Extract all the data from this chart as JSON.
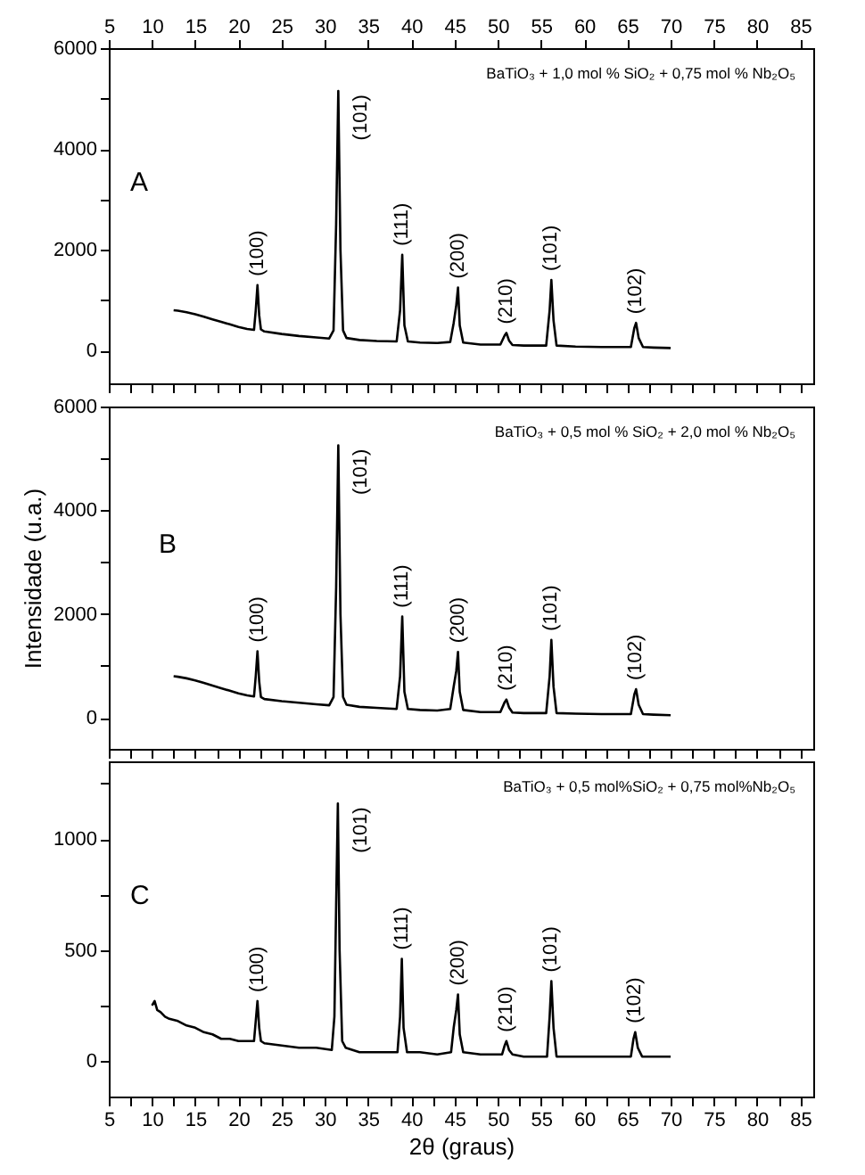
{
  "chart_data": [
    {
      "type": "line",
      "xlim": [
        5,
        86.5
      ],
      "x2lim": [
        5,
        86.5
      ],
      "ylim": [
        -650,
        6000
      ],
      "grid": false,
      "tick_labels": "y",
      "xticks": [
        5,
        {
          "value": 7.5,
          "label": null
        },
        10,
        {
          "value": 12.5,
          "label": null
        },
        15,
        {
          "value": 17.5,
          "label": null
        },
        20,
        {
          "value": 22.5,
          "label": null
        },
        25,
        {
          "value": 27.5,
          "label": null
        },
        30,
        {
          "value": 32.5,
          "label": null
        },
        35,
        {
          "value": 37.5,
          "label": null
        },
        40,
        {
          "value": 42.5,
          "label": null
        },
        45,
        {
          "value": 47.5,
          "label": null
        },
        50,
        {
          "value": 52.5,
          "label": null
        },
        55,
        {
          "value": 57.5,
          "label": null
        },
        60,
        {
          "value": 62.5,
          "label": null
        },
        65,
        {
          "value": 67.5,
          "label": null
        },
        70,
        {
          "value": 72.5,
          "label": null
        },
        75,
        {
          "value": 77.5,
          "label": null
        },
        80,
        {
          "value": 82.5,
          "label": null
        },
        85
      ],
      "x2ticks": [
        5,
        10,
        15,
        20,
        25,
        30,
        35,
        40,
        45,
        50,
        55,
        60,
        65,
        70,
        75,
        80,
        85
      ],
      "yticks": [
        0,
        {
          "value": 1000,
          "label": null
        },
        2000,
        {
          "value": 3000,
          "label": null
        },
        4000,
        {
          "value": 5000,
          "label": null
        },
        6000
      ],
      "series": [
        {
          "color": "#000000",
          "x": [
            12.5,
            13,
            14,
            15,
            16,
            17,
            18,
            19,
            20,
            21,
            21.8,
            22.0,
            22.2,
            22.4,
            22.6,
            23,
            25,
            27,
            29,
            30.5,
            31.0,
            31.3,
            31.55,
            31.8,
            32.1,
            32.5,
            34,
            36,
            38.3,
            38.7,
            38.95,
            39.2,
            39.6,
            41,
            43,
            44.5,
            44.9,
            45.2,
            45.4,
            45.6,
            46,
            48,
            50.3,
            50.8,
            51.0,
            51.3,
            51.7,
            53,
            55.6,
            56.0,
            56.2,
            56.45,
            56.8,
            59,
            62,
            65.4,
            65.8,
            66.0,
            66.3,
            66.8,
            68,
            70
          ],
          "values": [
            800,
            790,
            760,
            720,
            670,
            620,
            570,
            520,
            470,
            430,
            410,
            800,
            1300,
            700,
            420,
            380,
            330,
            290,
            260,
            240,
            400,
            2500,
            5150,
            2000,
            400,
            250,
            210,
            190,
            180,
            800,
            1900,
            500,
            180,
            160,
            150,
            170,
            550,
            900,
            1250,
            500,
            160,
            120,
            120,
            300,
            350,
            200,
            110,
            100,
            100,
            800,
            1400,
            600,
            100,
            80,
            70,
            70,
            450,
            550,
            250,
            70,
            60,
            50
          ]
        }
      ],
      "annotations": [
        "BaTiO₃ + 1,0 mol % SiO₂ + 0,75 mol % Nb₂O₅",
        "A",
        {
          "text": "(100)",
          "x": 22.2,
          "y": 1300
        },
        {
          "text": "(101)",
          "x": 31.55,
          "y": 5150
        },
        {
          "text": "(111)",
          "x": 38.95,
          "y": 1900
        },
        {
          "text": "(200)",
          "x": 45.4,
          "y": 1250
        },
        {
          "text": "(210)",
          "x": 51.0,
          "y": 350
        },
        {
          "text": "(101)",
          "x": 56.2,
          "y": 1400
        },
        {
          "text": "(102)",
          "x": 66.0,
          "y": 550
        }
      ]
    },
    {
      "type": "line",
      "xlim": [
        5,
        86.5
      ],
      "ylim": [
        -600,
        6000
      ],
      "grid": false,
      "tick_labels": "y",
      "ylabel": "Intensidade (u.a.)",
      "xticks": [
        5,
        {
          "value": 7.5,
          "label": null
        },
        10,
        {
          "value": 12.5,
          "label": null
        },
        15,
        {
          "value": 17.5,
          "label": null
        },
        20,
        {
          "value": 22.5,
          "label": null
        },
        25,
        {
          "value": 27.5,
          "label": null
        },
        30,
        {
          "value": 32.5,
          "label": null
        },
        35,
        {
          "value": 37.5,
          "label": null
        },
        40,
        {
          "value": 42.5,
          "label": null
        },
        45,
        {
          "value": 47.5,
          "label": null
        },
        50,
        {
          "value": 52.5,
          "label": null
        },
        55,
        {
          "value": 57.5,
          "label": null
        },
        60,
        {
          "value": 62.5,
          "label": null
        },
        65,
        {
          "value": 67.5,
          "label": null
        },
        70,
        {
          "value": 72.5,
          "label": null
        },
        75,
        {
          "value": 77.5,
          "label": null
        },
        80,
        {
          "value": 82.5,
          "label": null
        },
        85
      ],
      "yticks": [
        0,
        {
          "value": 1000,
          "label": null
        },
        2000,
        {
          "value": 3000,
          "label": null
        },
        4000,
        {
          "value": 5000,
          "label": null
        },
        6000
      ],
      "series": [
        {
          "color": "#000000",
          "x": [
            12.5,
            13,
            14,
            15,
            16,
            17,
            18,
            19,
            20,
            21,
            21.8,
            22.0,
            22.2,
            22.4,
            22.6,
            23,
            25,
            27,
            29,
            30.5,
            31.0,
            31.3,
            31.55,
            31.8,
            32.1,
            32.5,
            34,
            36,
            38.3,
            38.7,
            38.95,
            39.2,
            39.6,
            41,
            43,
            44.5,
            44.9,
            45.2,
            45.4,
            45.6,
            46,
            48,
            50.3,
            50.8,
            51.0,
            51.3,
            51.7,
            53,
            55.6,
            56.0,
            56.2,
            56.45,
            56.8,
            59,
            62,
            65.4,
            65.8,
            66.0,
            66.3,
            66.8,
            68,
            70
          ],
          "values": [
            800,
            790,
            760,
            720,
            670,
            620,
            570,
            520,
            470,
            430,
            410,
            800,
            1280,
            700,
            400,
            360,
            320,
            290,
            260,
            240,
            400,
            2500,
            5250,
            2000,
            400,
            250,
            210,
            190,
            170,
            800,
            1950,
            500,
            170,
            150,
            140,
            170,
            600,
            900,
            1270,
            500,
            150,
            110,
            110,
            300,
            350,
            200,
            100,
            90,
            90,
            800,
            1500,
            600,
            90,
            80,
            70,
            70,
            450,
            550,
            250,
            70,
            60,
            50
          ]
        }
      ],
      "annotations": [
        "BaTiO₃ + 0,5 mol % SiO₂ + 2,0 mol % Nb₂O₅",
        "B",
        {
          "text": "(100)",
          "x": 22.2,
          "y": 1280
        },
        {
          "text": "(101)",
          "x": 31.55,
          "y": 5250
        },
        {
          "text": "(111)",
          "x": 38.95,
          "y": 1950
        },
        {
          "text": "(200)",
          "x": 45.4,
          "y": 1270
        },
        {
          "text": "(210)",
          "x": 51.0,
          "y": 350
        },
        {
          "text": "(101)",
          "x": 56.2,
          "y": 1500
        },
        {
          "text": "(102)",
          "x": 66.0,
          "y": 550
        }
      ]
    },
    {
      "type": "line",
      "xlim": [
        5,
        86.5
      ],
      "ylim": [
        -160,
        1350
      ],
      "grid": false,
      "xlabel": "2θ (graus)",
      "xticks": [
        5,
        {
          "value": 7.5,
          "label": null
        },
        10,
        {
          "value": 12.5,
          "label": null
        },
        15,
        {
          "value": 17.5,
          "label": null
        },
        20,
        {
          "value": 22.5,
          "label": null
        },
        25,
        {
          "value": 27.5,
          "label": null
        },
        30,
        {
          "value": 32.5,
          "label": null
        },
        35,
        {
          "value": 37.5,
          "label": null
        },
        40,
        {
          "value": 42.5,
          "label": null
        },
        45,
        {
          "value": 47.5,
          "label": null
        },
        50,
        {
          "value": 52.5,
          "label": null
        },
        55,
        {
          "value": 57.5,
          "label": null
        },
        60,
        {
          "value": 62.5,
          "label": null
        },
        65,
        {
          "value": 67.5,
          "label": null
        },
        70,
        {
          "value": 72.5,
          "label": null
        },
        75,
        {
          "value": 77.5,
          "label": null
        },
        80,
        {
          "value": 82.5,
          "label": null
        },
        85
      ],
      "yticks": [
        0,
        {
          "value": 250,
          "label": null
        },
        500,
        {
          "value": 750,
          "label": null
        },
        1000,
        {
          "value": 1250,
          "label": null
        }
      ],
      "series": [
        {
          "color": "#000000",
          "x": [
            10,
            10.3,
            10.6,
            11,
            11.5,
            12,
            13,
            14,
            15,
            16,
            17,
            18,
            19,
            20,
            21,
            21.8,
            22.0,
            22.2,
            22.4,
            22.6,
            23,
            25,
            27,
            29,
            30.8,
            31.1,
            31.3,
            31.5,
            31.7,
            32.0,
            32.4,
            34,
            36,
            38.4,
            38.7,
            38.9,
            39.1,
            39.5,
            41,
            43,
            44.6,
            44.9,
            45.2,
            45.4,
            45.6,
            46,
            48,
            50.5,
            50.8,
            51.0,
            51.3,
            51.7,
            53,
            55.7,
            56.0,
            56.2,
            56.45,
            56.8,
            59,
            62,
            65.4,
            65.7,
            65.9,
            66.2,
            66.7,
            68,
            70
          ],
          "values": [
            250,
            270,
            230,
            220,
            200,
            190,
            180,
            160,
            150,
            130,
            120,
            100,
            100,
            90,
            90,
            90,
            180,
            270,
            150,
            90,
            80,
            70,
            60,
            60,
            50,
            200,
            700,
            1160,
            500,
            90,
            60,
            40,
            40,
            40,
            200,
            460,
            150,
            40,
            40,
            30,
            40,
            150,
            230,
            300,
            120,
            40,
            30,
            30,
            70,
            90,
            50,
            30,
            20,
            20,
            200,
            360,
            150,
            20,
            20,
            20,
            20,
            100,
            130,
            60,
            20,
            20,
            20
          ]
        }
      ],
      "annotations": [
        "BaTiO₃ + 0,5 mol%SiO₂ + 0,75 mol%Nb₂O₅",
        "C",
        {
          "text": "(100)",
          "x": 22.2,
          "y": 270
        },
        {
          "text": "(101)",
          "x": 31.5,
          "y": 1160
        },
        {
          "text": "(111)",
          "x": 38.9,
          "y": 460
        },
        {
          "text": "(200)",
          "x": 45.4,
          "y": 300
        },
        {
          "text": "(210)",
          "x": 51.0,
          "y": 90
        },
        {
          "text": "(101)",
          "x": 56.2,
          "y": 360
        },
        {
          "text": "(102)",
          "x": 65.9,
          "y": 130
        }
      ]
    }
  ]
}
